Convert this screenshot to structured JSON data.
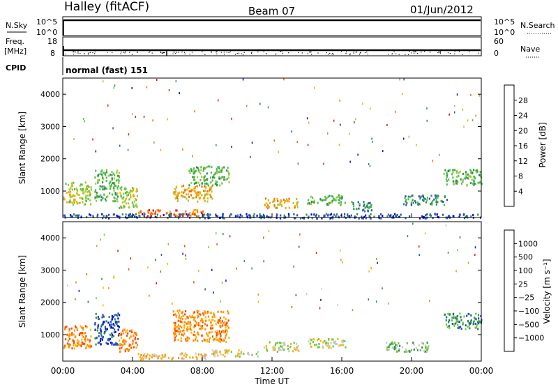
{
  "header": {
    "station": "Halley (fitACF)",
    "beam": "Beam 07",
    "date": "01/Jun/2012"
  },
  "noise_panel": {
    "left_label": "N.Sky",
    "right_label": "N.Search",
    "left_ticks": [
      "10^5",
      "10^0"
    ],
    "right_ticks": [
      "10^5",
      "10^0"
    ]
  },
  "freq_panel": {
    "left_label_top": "Freq.",
    "left_label_unit": "[MHz]",
    "left_ticks": [
      "18",
      "8"
    ],
    "right_label": "Nave",
    "right_ticks": [
      "60",
      "0"
    ]
  },
  "cpid": {
    "label": "CPID",
    "value": "normal (fast) 151"
  },
  "chart_data": [
    {
      "type": "heatmap",
      "name": "power",
      "ylabel": "Slant Range [km]",
      "yticks": [
        "4000",
        "3000",
        "2000",
        "1000"
      ],
      "ytick_values": [
        4000,
        3000,
        2000,
        1000
      ],
      "ylim": [
        180,
        4500
      ],
      "xlim_hours": [
        0,
        24
      ],
      "colorbar_label": "Power [dB]",
      "colorbar_ticks": [
        "28",
        "24",
        "20",
        "16",
        "12",
        "8",
        "4"
      ],
      "colorbar_colors": [
        "#0000ff",
        "#2a52b8",
        "#2e8b57",
        "#4fbf4f",
        "#9acd32",
        "#ffa500",
        "#ff6600",
        "#ff0000"
      ],
      "echo_regions": [
        {
          "t0": 0.0,
          "t1": 1.6,
          "r0": 600,
          "r1": 1300,
          "level": 4
        },
        {
          "t0": 1.8,
          "t1": 3.2,
          "r0": 700,
          "r1": 1700,
          "level": 3
        },
        {
          "t0": 3.2,
          "t1": 4.3,
          "r0": 500,
          "r1": 1200,
          "level": 4
        },
        {
          "t0": 6.3,
          "t1": 8.6,
          "r0": 700,
          "r1": 1200,
          "level": 5
        },
        {
          "t0": 4.3,
          "t1": 8.2,
          "r0": 250,
          "r1": 450,
          "level": 6
        },
        {
          "t0": 7.2,
          "t1": 9.5,
          "r0": 1200,
          "r1": 1800,
          "level": 3
        },
        {
          "t0": 11.5,
          "t1": 13.5,
          "r0": 500,
          "r1": 800,
          "level": 5
        },
        {
          "t0": 14.0,
          "t1": 16.2,
          "r0": 600,
          "r1": 900,
          "level": 3
        },
        {
          "t0": 16.5,
          "t1": 17.8,
          "r0": 400,
          "r1": 700,
          "level": 2
        },
        {
          "t0": 19.5,
          "t1": 22.0,
          "r0": 600,
          "r1": 900,
          "level": 2
        },
        {
          "t0": 21.8,
          "t1": 24.0,
          "r0": 1200,
          "r1": 1700,
          "level": 3
        },
        {
          "t0": 0.0,
          "t1": 24.0,
          "r0": 180,
          "r1": 320,
          "level": 1
        }
      ]
    },
    {
      "type": "heatmap",
      "name": "velocity",
      "xlabel": "Time UT",
      "xticks": [
        "00:00",
        "04:00",
        "08:00",
        "12:00",
        "16:00",
        "20:00",
        "00:00"
      ],
      "xtick_hours": [
        0,
        4,
        8,
        12,
        16,
        20,
        24
      ],
      "ylabel": "Slant Range [km]",
      "yticks": [
        "4000",
        "3000",
        "2000",
        "1000"
      ],
      "ytick_values": [
        4000,
        3000,
        2000,
        1000
      ],
      "ylim": [
        180,
        4500
      ],
      "xlim_hours": [
        0,
        24
      ],
      "colorbar_label": "Velocity [m s⁻¹]",
      "colorbar_ticks": [
        "1000",
        "500",
        "100",
        "25",
        "−25",
        "−100",
        "−500",
        "−1000"
      ],
      "colorbar_colors": [
        "#ff0000",
        "#ff4500",
        "#ff8c00",
        "#ffb000",
        "#c8c8c8",
        "#66cc33",
        "#2e8b57",
        "#2a52b8",
        "#0000ff"
      ],
      "echo_regions": [
        {
          "t0": 0.0,
          "t1": 1.6,
          "r0": 600,
          "r1": 1300,
          "level": 2
        },
        {
          "t0": 1.8,
          "t1": 3.2,
          "r0": 700,
          "r1": 1700,
          "level": 7
        },
        {
          "t0": 3.2,
          "t1": 4.3,
          "r0": 500,
          "r1": 1200,
          "level": 2
        },
        {
          "t0": 6.3,
          "t1": 9.5,
          "r0": 800,
          "r1": 1800,
          "level": 2
        },
        {
          "t0": 4.3,
          "t1": 8.2,
          "r0": 250,
          "r1": 450,
          "level": 3
        },
        {
          "t0": 8.5,
          "t1": 11.2,
          "r0": 350,
          "r1": 550,
          "level": 4
        },
        {
          "t0": 11.5,
          "t1": 13.5,
          "r0": 500,
          "r1": 800,
          "level": 4
        },
        {
          "t0": 14.0,
          "t1": 16.2,
          "r0": 600,
          "r1": 900,
          "level": 4
        },
        {
          "t0": 18.5,
          "t1": 21.0,
          "r0": 500,
          "r1": 800,
          "level": 5
        },
        {
          "t0": 21.8,
          "t1": 24.0,
          "r0": 1200,
          "r1": 1700,
          "level": 6
        }
      ]
    }
  ]
}
